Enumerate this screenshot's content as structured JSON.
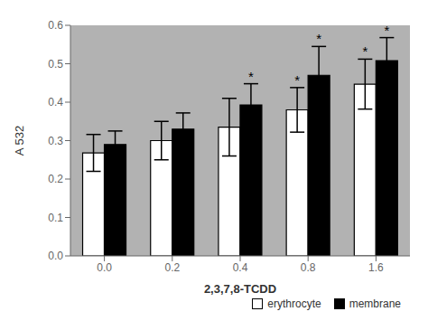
{
  "chart_data": {
    "type": "bar",
    "categories": [
      "0.0",
      "0.2",
      "0.4",
      "0.8",
      "1.6"
    ],
    "series": [
      {
        "name": "erythrocyte",
        "color": "#ffffff",
        "values": [
          0.268,
          0.3,
          0.335,
          0.38,
          0.447
        ],
        "errors": [
          0.048,
          0.05,
          0.075,
          0.058,
          0.065
        ],
        "annotations": [
          null,
          null,
          null,
          "*",
          "*"
        ]
      },
      {
        "name": "membrane",
        "color": "#000000",
        "values": [
          0.29,
          0.33,
          0.393,
          0.47,
          0.508
        ],
        "errors": [
          0.035,
          0.042,
          0.055,
          0.075,
          0.06
        ],
        "annotations": [
          null,
          null,
          "*",
          "*",
          "*"
        ]
      }
    ],
    "xlabel": "2,3,7,8-TCDD",
    "ylabel": "A 532",
    "ylim": [
      0,
      0.6
    ],
    "yticks": [
      {
        "value": 0,
        "label": "0.0"
      },
      0.1,
      0.2,
      0.3,
      0.4,
      0.5,
      0.6
    ],
    "legend": "lower right",
    "grid": false
  }
}
